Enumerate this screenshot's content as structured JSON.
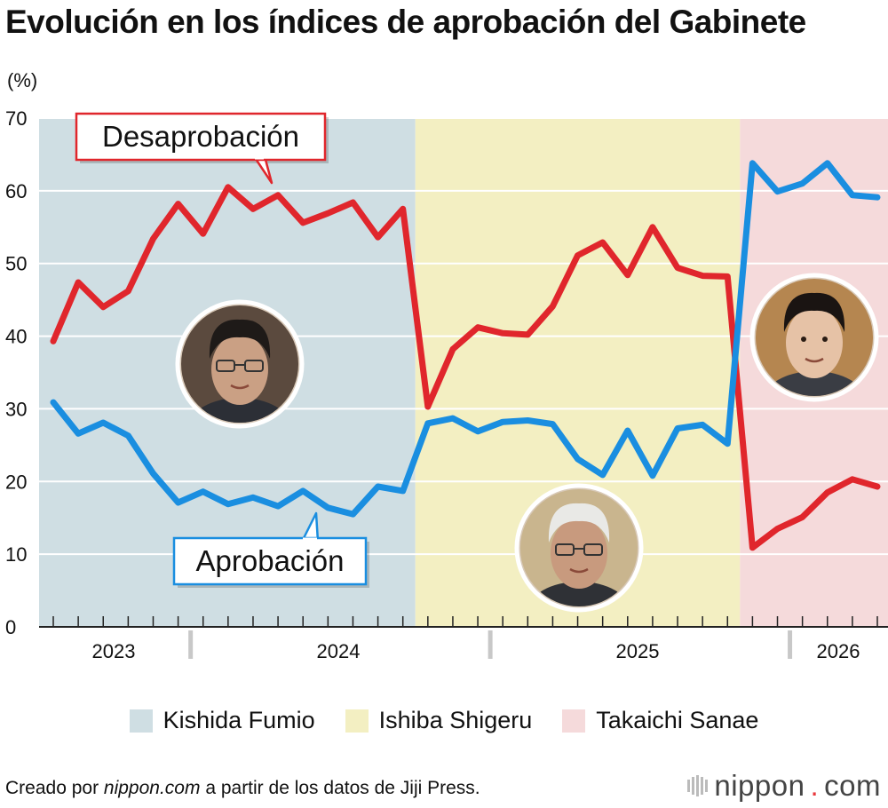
{
  "title": "Evolución en los índices de aprobación del Gabinete",
  "unit_label": "(%)",
  "chart_data": {
    "type": "line",
    "ylim": [
      0,
      70
    ],
    "yticks": [
      0,
      10,
      20,
      30,
      40,
      50,
      60,
      70
    ],
    "x_year_labels": [
      "2023",
      "2024",
      "2025",
      "2026"
    ],
    "n_points": 34,
    "series": [
      {
        "name": "Desaprobación",
        "color": "#e0262c",
        "values": [
          39.3,
          47.4,
          44.0,
          46.2,
          53.4,
          58.2,
          54.1,
          60.5,
          57.5,
          59.4,
          55.6,
          56.9,
          58.4,
          53.6,
          57.5,
          30.3,
          38.2,
          41.2,
          40.4,
          40.2,
          44.1,
          51.1,
          52.9,
          48.4,
          55.0,
          49.4,
          48.3,
          48.2,
          10.9,
          13.5,
          15.1,
          18.5,
          20.3,
          19.3
        ]
      },
      {
        "name": "Aprobación",
        "color": "#1a8ee0",
        "values": [
          30.9,
          26.6,
          28.1,
          26.3,
          21.1,
          17.1,
          18.6,
          16.9,
          17.8,
          16.6,
          18.7,
          16.4,
          15.5,
          19.3,
          18.7,
          28.0,
          28.7,
          26.9,
          28.2,
          28.4,
          27.9,
          23.1,
          20.9,
          27.0,
          20.8,
          27.3,
          27.8,
          25.2,
          63.8,
          59.9,
          61.0,
          63.8,
          59.4,
          59.1
        ]
      }
    ],
    "periods": [
      {
        "name": "Kishida Fumio",
        "color": "#cfdee3",
        "start_index": 0,
        "end_index": 14.5
      },
      {
        "name": "Ishiba Shigeru",
        "color": "#f3efc2",
        "start_index": 14.5,
        "end_index": 27.5
      },
      {
        "name": "Takaichi Sanae",
        "color": "#f5dadb",
        "start_index": 27.5,
        "end_index": 33
      }
    ],
    "callouts": {
      "desaprobacion": "Desaprobación",
      "aprobacion": "Aprobación"
    }
  },
  "legend": [
    {
      "label": "Kishida Fumio",
      "color": "#cfdee3"
    },
    {
      "label": "Ishiba Shigeru",
      "color": "#f3efc2"
    },
    {
      "label": "Takaichi Sanae",
      "color": "#f5dadb"
    }
  ],
  "footer": {
    "prefix": "Creado por ",
    "site": "nippon.com",
    "suffix": " a partir de los datos de Jiji Press."
  },
  "brand": {
    "name": "nippon",
    "dot": ".",
    "tld": "com"
  }
}
